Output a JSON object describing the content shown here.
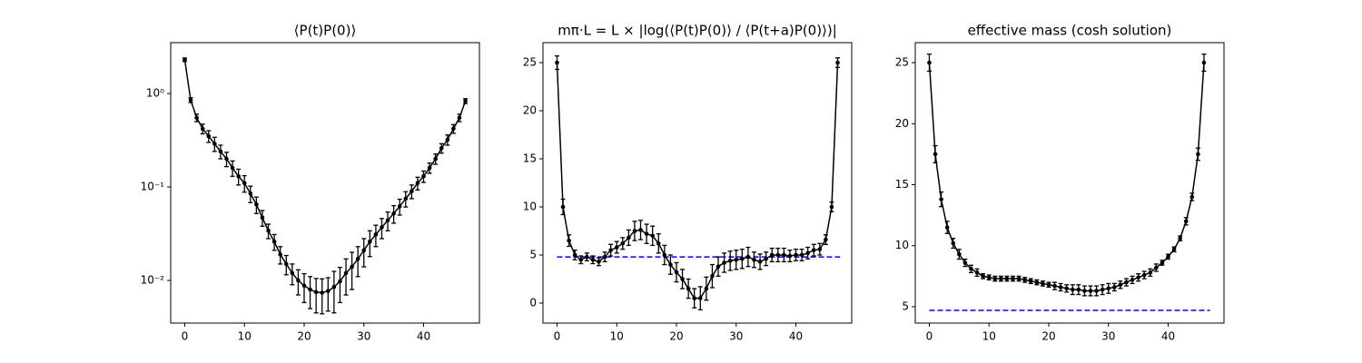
{
  "chart_data": [
    {
      "type": "errorbar",
      "title": "⟨P(t)P(0)⟩",
      "ylog": true,
      "xlim": [
        -2.35,
        49.35
      ],
      "xticks": [
        0,
        10,
        20,
        30,
        40
      ],
      "ylim": [
        0.0035,
        3.5
      ],
      "yticks": [
        {
          "value": 0.01,
          "label": "10⁻²"
        },
        {
          "value": 0.1,
          "label": "10⁻¹"
        },
        {
          "value": 1,
          "label": "10⁰"
        }
      ],
      "series": [
        {
          "color": "#000000",
          "x": [
            0,
            1,
            2,
            3,
            4,
            5,
            6,
            7,
            8,
            9,
            10,
            11,
            12,
            13,
            14,
            15,
            16,
            17,
            18,
            19,
            20,
            21,
            22,
            23,
            24,
            25,
            26,
            27,
            28,
            29,
            30,
            31,
            32,
            33,
            34,
            35,
            36,
            37,
            38,
            39,
            40,
            41,
            42,
            43,
            44,
            45,
            46,
            47
          ],
          "values": [
            2.3,
            0.85,
            0.55,
            0.42,
            0.35,
            0.29,
            0.24,
            0.2,
            0.16,
            0.13,
            0.11,
            0.085,
            0.065,
            0.047,
            0.034,
            0.026,
            0.019,
            0.015,
            0.012,
            0.01,
            0.0088,
            0.008,
            0.0075,
            0.0074,
            0.0077,
            0.0085,
            0.0098,
            0.012,
            0.014,
            0.017,
            0.021,
            0.026,
            0.031,
            0.037,
            0.044,
            0.052,
            0.062,
            0.075,
            0.09,
            0.11,
            0.13,
            0.16,
            0.2,
            0.26,
            0.32,
            0.42,
            0.55,
            0.83
          ],
          "errors": [
            0.1,
            0.05,
            0.05,
            0.05,
            0.05,
            0.05,
            0.04,
            0.035,
            0.03,
            0.025,
            0.022,
            0.017,
            0.013,
            0.009,
            0.006,
            0.005,
            0.004,
            0.0035,
            0.003,
            0.003,
            0.003,
            0.003,
            0.003,
            0.003,
            0.003,
            0.004,
            0.004,
            0.005,
            0.006,
            0.006,
            0.007,
            0.008,
            0.008,
            0.009,
            0.01,
            0.011,
            0.012,
            0.014,
            0.015,
            0.017,
            0.018,
            0.02,
            0.025,
            0.03,
            0.04,
            0.045,
            0.05,
            0.05
          ]
        }
      ]
    },
    {
      "type": "errorbar",
      "title": "mπ·L = L × |log(⟨P(t)P(0)⟩ / ⟨P(t+a)P(0)⟩)|",
      "xlim": [
        -2.35,
        49.35
      ],
      "xticks": [
        0,
        10,
        20,
        30,
        40
      ],
      "ylim": [
        -2.08,
        27.08
      ],
      "yticks": [
        0,
        5,
        10,
        15,
        20,
        25
      ],
      "reference_line": {
        "y": 4.8,
        "x": [
          0,
          47.4
        ],
        "color": "#0000ff"
      },
      "series": [
        {
          "color": "#000000",
          "x": [
            0,
            1,
            2,
            3,
            4,
            5,
            6,
            7,
            8,
            9,
            10,
            11,
            12,
            13,
            14,
            15,
            16,
            17,
            18,
            19,
            20,
            21,
            22,
            23,
            24,
            25,
            26,
            27,
            28,
            29,
            30,
            31,
            32,
            33,
            34,
            35,
            36,
            37,
            38,
            39,
            40,
            41,
            42,
            43,
            44,
            45,
            46,
            47
          ],
          "values": [
            25,
            10,
            6.5,
            5,
            4.5,
            4.8,
            4.5,
            4.3,
            4.8,
            5.5,
            5.8,
            6.2,
            6.8,
            7.5,
            7.6,
            7.2,
            7,
            6.2,
            5,
            4,
            3.2,
            2.5,
            1.5,
            0.5,
            0.5,
            1.5,
            2.8,
            3.8,
            4.2,
            4.4,
            4.5,
            4.6,
            4.8,
            4.5,
            4.3,
            4.6,
            5,
            5,
            5,
            4.9,
            5,
            5,
            5.2,
            5.5,
            5.6,
            6.6,
            10,
            25
          ],
          "errors": [
            0.7,
            0.8,
            0.6,
            0.5,
            0.4,
            0.4,
            0.4,
            0.4,
            0.5,
            0.6,
            0.6,
            0.6,
            0.8,
            1,
            1,
            1,
            1,
            1,
            1,
            1,
            1,
            1,
            1,
            1,
            1.2,
            1.2,
            1.2,
            1,
            1,
            1,
            1,
            1,
            1,
            0.8,
            0.8,
            0.7,
            0.7,
            0.7,
            0.7,
            0.6,
            0.6,
            0.6,
            0.6,
            0.6,
            0.6,
            0.5,
            0.5,
            0.5
          ]
        }
      ]
    },
    {
      "type": "errorbar",
      "title": "effective mass (cosh solution)",
      "xlim": [
        -2.35,
        49.35
      ],
      "xticks": [
        0,
        10,
        20,
        30,
        40
      ],
      "ylim": [
        3.66,
        26.64
      ],
      "yticks": [
        5,
        10,
        15,
        20,
        25
      ],
      "reference_line": {
        "y": 4.7,
        "x": [
          0,
          47
        ],
        "color": "#0000ff"
      },
      "series": [
        {
          "color": "#000000",
          "x": [
            0,
            1,
            2,
            3,
            4,
            5,
            6,
            7,
            8,
            9,
            10,
            11,
            12,
            13,
            14,
            15,
            16,
            17,
            18,
            19,
            20,
            21,
            22,
            23,
            24,
            25,
            26,
            27,
            28,
            29,
            30,
            31,
            32,
            33,
            34,
            35,
            36,
            37,
            38,
            39,
            40,
            41,
            42,
            43,
            44,
            45,
            46
          ],
          "values": [
            25,
            17.5,
            13.8,
            11.5,
            10.2,
            9.3,
            8.6,
            8.1,
            7.8,
            7.5,
            7.4,
            7.3,
            7.3,
            7.3,
            7.3,
            7.3,
            7.2,
            7.1,
            7,
            6.9,
            6.8,
            6.7,
            6.6,
            6.5,
            6.4,
            6.4,
            6.3,
            6.3,
            6.3,
            6.4,
            6.5,
            6.6,
            6.8,
            7,
            7.2,
            7.4,
            7.6,
            7.8,
            8.2,
            8.6,
            9.1,
            9.7,
            10.6,
            12,
            14,
            17.5,
            25
          ],
          "errors": [
            0.7,
            0.7,
            0.6,
            0.5,
            0.4,
            0.4,
            0.3,
            0.3,
            0.3,
            0.2,
            0.2,
            0.2,
            0.2,
            0.2,
            0.2,
            0.2,
            0.2,
            0.2,
            0.2,
            0.2,
            0.2,
            0.3,
            0.3,
            0.3,
            0.4,
            0.4,
            0.4,
            0.4,
            0.4,
            0.4,
            0.4,
            0.3,
            0.3,
            0.3,
            0.3,
            0.3,
            0.3,
            0.3,
            0.3,
            0.2,
            0.2,
            0.2,
            0.2,
            0.3,
            0.3,
            0.5,
            0.7
          ]
        }
      ]
    }
  ]
}
